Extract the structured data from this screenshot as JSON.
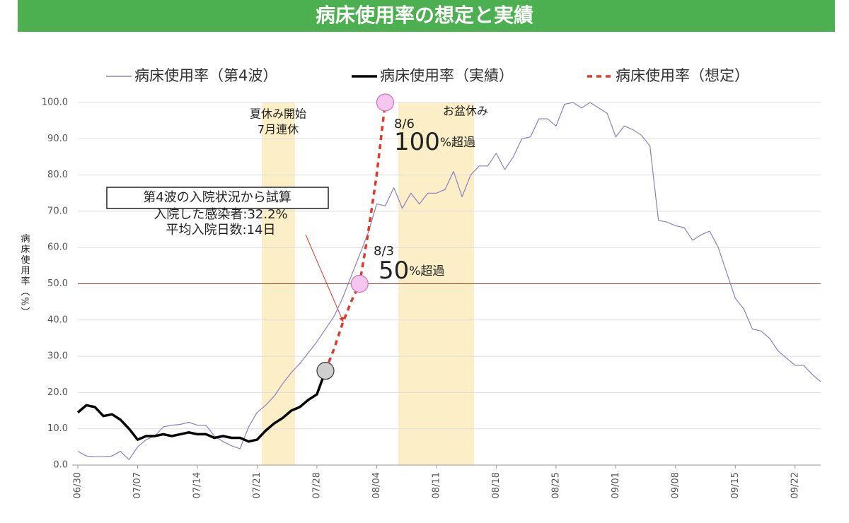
{
  "chart_data": {
    "type": "line",
    "title": "病床使用率の想定と実績",
    "y_label": "病床使用率（%）",
    "categories": [
      "06/30",
      null,
      null,
      null,
      null,
      null,
      null,
      "07/07",
      null,
      null,
      null,
      null,
      null,
      null,
      "07/14",
      null,
      null,
      null,
      null,
      null,
      null,
      "07/21",
      null,
      null,
      null,
      null,
      null,
      null,
      "07/28",
      null,
      null,
      null,
      null,
      null,
      null,
      "08/04",
      null,
      null,
      null,
      null,
      null,
      null,
      "08/11",
      null,
      null,
      null,
      null,
      null,
      null,
      "08/18",
      null,
      null,
      null,
      null,
      null,
      null,
      "08/25",
      null,
      null,
      null,
      null,
      null,
      null,
      "09/01",
      null,
      null,
      null,
      null,
      null,
      null,
      "09/08",
      null,
      null,
      null,
      null,
      null,
      null,
      "09/15",
      null,
      null,
      null,
      null,
      null,
      null,
      "09/22",
      null,
      null,
      null
    ],
    "series": [
      {
        "name": "病床使用率（第4波）",
        "color": "#8a7fc4",
        "style": "solid",
        "values": [
          3.8,
          2.5,
          2.3,
          2.3,
          2.5,
          3.8,
          1.5,
          5,
          7,
          8,
          10.5,
          11,
          11.2,
          11.8,
          11,
          11,
          8,
          6.5,
          5.3,
          4.5,
          10.5,
          14.5,
          16.5,
          19,
          22.5,
          25.5,
          28,
          31,
          34,
          37.5,
          41,
          46,
          52,
          58,
          64,
          72,
          71.5,
          76.5,
          70.8,
          75,
          72,
          75,
          75,
          76,
          81,
          74,
          80,
          82.5,
          82.5,
          86,
          81.5,
          85,
          90,
          90.5,
          95.5,
          95.5,
          93.5,
          99.5,
          100,
          98.5,
          100,
          98.5,
          97,
          90.5,
          93.5,
          92.5,
          91,
          88,
          67.5,
          67,
          66,
          65.5,
          62,
          63.5,
          64.5,
          60,
          53,
          46,
          43,
          37.5,
          37,
          35,
          31.5,
          29.5,
          27.5,
          27.5,
          25,
          23
        ]
      },
      {
        "name": "病床使用率（実績）",
        "color": "#000000",
        "style": "thick",
        "values": [
          14.5,
          16.5,
          16,
          13.5,
          14,
          12.5,
          10,
          7,
          8,
          8,
          8.5,
          8,
          8.5,
          9,
          8.5,
          8.5,
          7.5,
          8,
          7.5,
          7.5,
          6.5,
          7,
          9.5,
          11.5,
          13,
          15,
          16,
          18,
          19.5,
          26,
          null,
          null,
          null,
          null,
          null,
          null,
          null,
          null,
          null,
          null,
          null,
          null,
          null,
          null,
          null,
          null,
          null,
          null,
          null,
          null,
          null,
          null,
          null,
          null,
          null,
          null,
          null,
          null,
          null,
          null,
          null,
          null,
          null,
          null,
          null,
          null,
          null,
          null,
          null,
          null,
          null,
          null,
          null,
          null,
          null,
          null,
          null,
          null,
          null,
          null,
          null,
          null,
          null,
          null,
          null,
          null,
          null,
          null
        ]
      },
      {
        "name": "病床使用率（想定）",
        "color": "#e03a2f",
        "style": "dashed",
        "values": [
          null,
          null,
          null,
          null,
          null,
          null,
          null,
          null,
          null,
          null,
          null,
          null,
          null,
          null,
          null,
          null,
          null,
          null,
          null,
          null,
          null,
          null,
          null,
          null,
          null,
          null,
          null,
          null,
          null,
          26,
          32,
          39,
          45,
          50,
          64,
          80,
          100,
          null,
          null,
          null,
          null,
          null,
          null,
          null,
          null,
          null,
          null,
          null,
          null,
          null,
          null,
          null,
          null,
          null,
          null,
          null,
          null,
          null,
          null,
          null,
          null,
          null,
          null,
          null,
          null,
          null,
          null,
          null,
          null,
          null,
          null,
          null,
          null,
          null,
          null,
          null,
          null,
          null,
          null,
          null,
          null,
          null,
          null,
          null,
          null,
          null,
          null,
          null
        ]
      }
    ],
    "reference_line": 50,
    "ylim": [
      0,
      100
    ],
    "yticks": [
      {
        "value": 0,
        "label": "0.0"
      },
      {
        "value": 10,
        "label": "10.0"
      },
      {
        "value": 20,
        "label": "20.0"
      },
      {
        "value": 30,
        "label": "30.0"
      },
      {
        "value": 40,
        "label": "40.0"
      },
      {
        "value": 50,
        "label": "50.0"
      },
      {
        "value": 60,
        "label": "60.0"
      },
      {
        "value": 70,
        "label": "70.0"
      },
      {
        "value": 80,
        "label": "80.0"
      },
      {
        "value": 90,
        "label": "90.0"
      },
      {
        "value": 100,
        "label": "100.0"
      }
    ],
    "grid": true,
    "legend": "top",
    "annotations": {
      "holiday1": [
        "夏休み開始",
        "7月連休"
      ],
      "holiday2": "お盆休み",
      "mark100": {
        "date": "8/6",
        "value": "100",
        "suffix": "%超過"
      },
      "mark50": {
        "date": "8/3",
        "value": "50",
        "suffix": "%超過"
      },
      "box": "第4波の入院状況から試算",
      "notes": [
        "入院した感染者:32.2%",
        "平均入院日数:14日"
      ]
    }
  }
}
